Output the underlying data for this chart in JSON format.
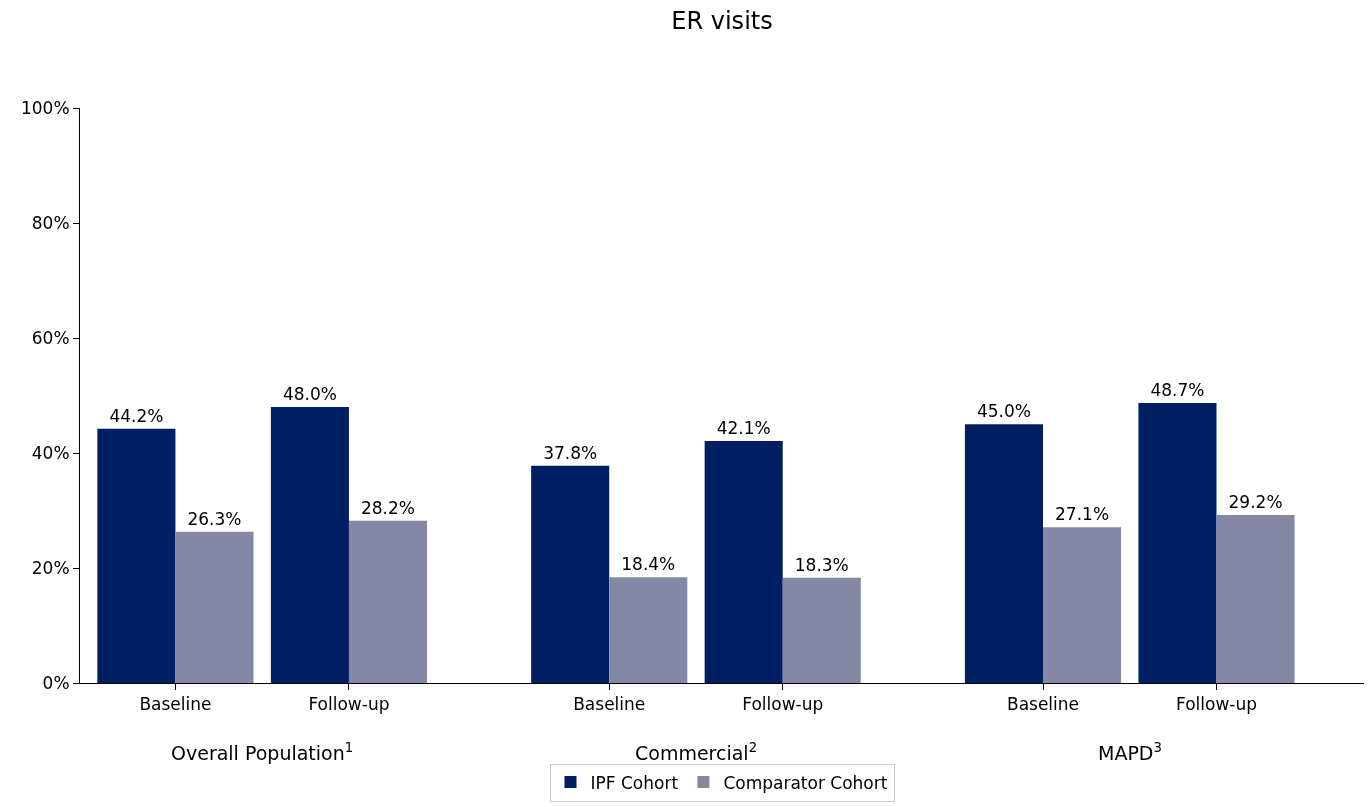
{
  "chart_data": {
    "type": "bar",
    "title": "ER visits",
    "categories": [
      "Baseline",
      "Follow-up",
      "Baseline",
      "Follow-up",
      "Baseline",
      "Follow-up"
    ],
    "annotations": [
      "Overall Population$^{1}$",
      "Commercial$^{2}$",
      "MAPD$^{3}$"
    ],
    "series": [
      {
        "name": "IPF Cohort",
        "color": "#001f63",
        "values": [
          44.2,
          48.0,
          37.8,
          42.1,
          45.0,
          48.7
        ],
        "value_labels": [
          "44.2%",
          "48.0%",
          "37.8%",
          "42.1%",
          "45.0%",
          "48.7%"
        ]
      },
      {
        "name": "Comparator Cohort",
        "color": "#8588a5",
        "values": [
          26.3,
          28.2,
          18.4,
          18.3,
          27.1,
          29.2
        ],
        "value_labels": [
          "26.3%",
          "28.2%",
          "18.4%",
          "18.3%",
          "27.1%",
          "29.2%"
        ]
      }
    ],
    "ylim": [
      0,
      100
    ],
    "yticks": [
      {
        "value": 0,
        "label": "0%"
      },
      {
        "value": 20,
        "label": "20%"
      },
      {
        "value": 40,
        "label": "40%"
      },
      {
        "value": 60,
        "label": "60%"
      },
      {
        "value": 80,
        "label": "80%"
      },
      {
        "value": 100,
        "label": "100%"
      }
    ],
    "grid": false,
    "legend": "bottom"
  }
}
